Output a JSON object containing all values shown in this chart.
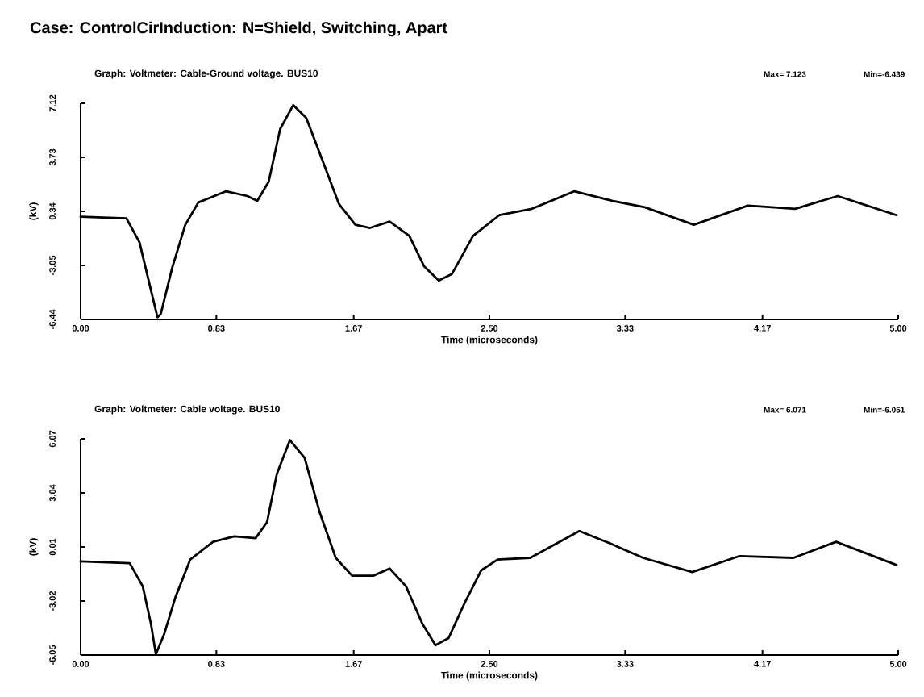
{
  "chart_data": [
    {
      "type": "line",
      "title": "Case:   ControlCirInduction: N=Shield, Switching, Apart",
      "subtitle": "Graph:  Voltmeter: Cable-Ground voltage. BUS10",
      "xlabel": "Time (microseconds)",
      "ylabel": "(kV)",
      "annotations": [
        "Max= 7.123",
        "Min=-6.439"
      ],
      "xlim": [
        0,
        5
      ],
      "ylim": [
        -6.44,
        7.12
      ],
      "xticks": [
        {
          "value": 0,
          "label": "0.00"
        },
        {
          "value": 0.83,
          "label": "0.83"
        },
        {
          "value": 1.67,
          "label": "1.67"
        },
        {
          "value": 2.5,
          "label": "2.50"
        },
        {
          "value": 3.33,
          "label": "3.33"
        },
        {
          "value": 4.17,
          "label": "4.17"
        },
        {
          "value": 5,
          "label": "5.00"
        }
      ],
      "yticks": [
        -6.44,
        -3.05,
        0.34,
        3.73,
        7.12
      ],
      "series": [
        {
          "color": "#000000",
          "x": [
            0,
            0.28,
            0.36,
            0.43,
            0.47,
            0.49,
            0.56,
            0.64,
            0.72,
            0.89,
            1.02,
            1.08,
            1.15,
            1.22,
            1.3,
            1.38,
            1.48,
            1.58,
            1.68,
            1.77,
            1.89,
            2.01,
            2.1,
            2.19,
            2.27,
            2.4,
            2.56,
            2.76,
            3.02,
            3.25,
            3.45,
            3.75,
            4.08,
            4.37,
            4.63,
            4.99
          ],
          "values": [
            0.0,
            -0.1,
            -1.6,
            -4.6,
            -6.3,
            -6.1,
            -3.2,
            -0.5,
            0.9,
            1.6,
            1.3,
            1.0,
            2.2,
            5.5,
            7.0,
            6.2,
            3.5,
            0.8,
            -0.5,
            -0.7,
            -0.3,
            -1.2,
            -3.1,
            -4.0,
            -3.6,
            -1.2,
            0.1,
            0.5,
            1.6,
            1.0,
            0.6,
            -0.5,
            0.7,
            0.5,
            1.3,
            0.1
          ]
        }
      ]
    },
    {
      "type": "line",
      "subtitle": "Graph:  Voltmeter: Cable voltage. BUS10",
      "xlabel": "Time (microseconds)",
      "ylabel": "(kV)",
      "annotations": [
        "Max= 6.071",
        "Min=-6.051"
      ],
      "xlim": [
        0,
        5
      ],
      "ylim": [
        -6.05,
        6.07
      ],
      "xticks": [
        {
          "value": 0,
          "label": "0.00"
        },
        {
          "value": 0.83,
          "label": "0.83"
        },
        {
          "value": 1.67,
          "label": "1.67"
        },
        {
          "value": 2.5,
          "label": "2.50"
        },
        {
          "value": 3.33,
          "label": "3.33"
        },
        {
          "value": 4.17,
          "label": "4.17"
        },
        {
          "value": 5,
          "label": "5.00"
        }
      ],
      "yticks": [
        -6.05,
        -3.02,
        0.01,
        3.04,
        6.07
      ],
      "series": [
        {
          "color": "#000000",
          "x": [
            0,
            0.3,
            0.38,
            0.43,
            0.46,
            0.51,
            0.58,
            0.67,
            0.81,
            0.94,
            1.07,
            1.14,
            1.2,
            1.28,
            1.37,
            1.46,
            1.56,
            1.66,
            1.79,
            1.89,
            1.99,
            2.09,
            2.17,
            2.25,
            2.35,
            2.45,
            2.55,
            2.75,
            3.05,
            3.24,
            3.44,
            3.74,
            4.03,
            4.36,
            4.62,
            4.99
          ],
          "values": [
            -0.8,
            -0.9,
            -2.2,
            -4.3,
            -6.0,
            -4.9,
            -2.8,
            -0.7,
            0.3,
            0.6,
            0.5,
            1.4,
            4.1,
            6.0,
            5.0,
            2.0,
            -0.6,
            -1.6,
            -1.6,
            -1.2,
            -2.2,
            -4.3,
            -5.5,
            -5.1,
            -3.1,
            -1.3,
            -0.7,
            -0.6,
            0.9,
            0.2,
            -0.6,
            -1.4,
            -0.5,
            -0.6,
            0.3,
            -1.0
          ]
        }
      ]
    }
  ]
}
